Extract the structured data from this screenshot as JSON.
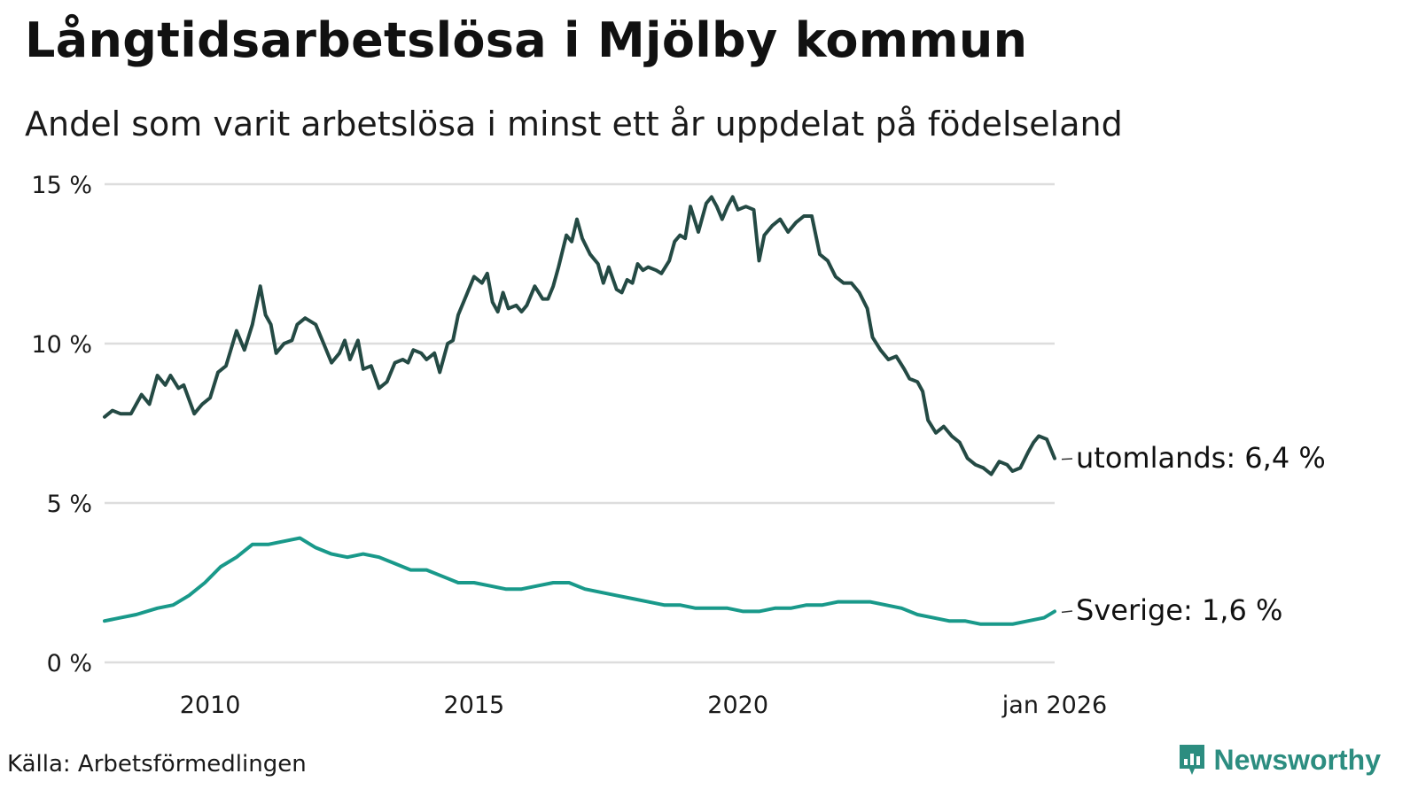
{
  "header": {
    "title": "Långtidsarbetslösa i Mjölby kommun",
    "subtitle": "Andel som varit arbetslösa i minst ett år uppdelat på födelseland"
  },
  "footer": {
    "source": "Källa: Arbetsförmedlingen",
    "brand": "Newsworthy"
  },
  "colors": {
    "utomlands": "#244a44",
    "sverige": "#19998a",
    "grid": "#dddddd",
    "brand": "#2c8d80"
  },
  "chart_data": {
    "type": "line",
    "title": "Långtidsarbetslösa i Mjölby kommun",
    "subtitle": "Andel som varit arbetslösa i minst ett år uppdelat på födelseland",
    "xlabel": "",
    "ylabel": "",
    "x_range": [
      2008.0,
      2026.0
    ],
    "ylim": [
      0,
      15
    ],
    "y_ticks": [
      0,
      5,
      10,
      15
    ],
    "y_tick_labels": [
      "0 %",
      "5 %",
      "10 %",
      "15 %"
    ],
    "x_ticks": [
      2010,
      2015,
      2020,
      2026
    ],
    "x_tick_labels": [
      "2010",
      "2015",
      "2020",
      "jan 2026"
    ],
    "grid": true,
    "series": [
      {
        "name": "utomlands",
        "end_label": "utomlands: 6,4 %",
        "points": [
          [
            2008.0,
            7.7
          ],
          [
            2008.15,
            7.9
          ],
          [
            2008.3,
            7.8
          ],
          [
            2008.5,
            7.8
          ],
          [
            2008.7,
            8.4
          ],
          [
            2008.85,
            8.1
          ],
          [
            2009.0,
            9.0
          ],
          [
            2009.15,
            8.7
          ],
          [
            2009.25,
            9.0
          ],
          [
            2009.4,
            8.6
          ],
          [
            2009.5,
            8.7
          ],
          [
            2009.7,
            7.8
          ],
          [
            2009.85,
            8.1
          ],
          [
            2010.0,
            8.3
          ],
          [
            2010.15,
            9.1
          ],
          [
            2010.3,
            9.3
          ],
          [
            2010.5,
            10.4
          ],
          [
            2010.65,
            9.8
          ],
          [
            2010.8,
            10.6
          ],
          [
            2010.95,
            11.8
          ],
          [
            2011.05,
            10.9
          ],
          [
            2011.15,
            10.6
          ],
          [
            2011.25,
            9.7
          ],
          [
            2011.4,
            10.0
          ],
          [
            2011.55,
            10.1
          ],
          [
            2011.65,
            10.6
          ],
          [
            2011.8,
            10.8
          ],
          [
            2012.0,
            10.6
          ],
          [
            2012.15,
            10.0
          ],
          [
            2012.3,
            9.4
          ],
          [
            2012.45,
            9.7
          ],
          [
            2012.55,
            10.1
          ],
          [
            2012.65,
            9.5
          ],
          [
            2012.8,
            10.1
          ],
          [
            2012.9,
            9.2
          ],
          [
            2013.05,
            9.3
          ],
          [
            2013.2,
            8.6
          ],
          [
            2013.35,
            8.8
          ],
          [
            2013.5,
            9.4
          ],
          [
            2013.65,
            9.5
          ],
          [
            2013.75,
            9.4
          ],
          [
            2013.85,
            9.8
          ],
          [
            2014.0,
            9.7
          ],
          [
            2014.1,
            9.5
          ],
          [
            2014.25,
            9.7
          ],
          [
            2014.35,
            9.1
          ],
          [
            2014.5,
            10.0
          ],
          [
            2014.6,
            10.1
          ],
          [
            2014.7,
            10.9
          ],
          [
            2014.85,
            11.5
          ],
          [
            2015.0,
            12.1
          ],
          [
            2015.15,
            11.9
          ],
          [
            2015.25,
            12.2
          ],
          [
            2015.35,
            11.3
          ],
          [
            2015.45,
            11.0
          ],
          [
            2015.55,
            11.6
          ],
          [
            2015.65,
            11.1
          ],
          [
            2015.8,
            11.2
          ],
          [
            2015.9,
            11.0
          ],
          [
            2016.0,
            11.2
          ],
          [
            2016.15,
            11.8
          ],
          [
            2016.3,
            11.4
          ],
          [
            2016.4,
            11.4
          ],
          [
            2016.5,
            11.8
          ],
          [
            2016.6,
            12.4
          ],
          [
            2016.75,
            13.4
          ],
          [
            2016.85,
            13.2
          ],
          [
            2016.95,
            13.9
          ],
          [
            2017.05,
            13.3
          ],
          [
            2017.2,
            12.8
          ],
          [
            2017.35,
            12.5
          ],
          [
            2017.45,
            11.9
          ],
          [
            2017.55,
            12.4
          ],
          [
            2017.7,
            11.7
          ],
          [
            2017.8,
            11.6
          ],
          [
            2017.9,
            12.0
          ],
          [
            2018.0,
            11.9
          ],
          [
            2018.1,
            12.5
          ],
          [
            2018.2,
            12.3
          ],
          [
            2018.3,
            12.4
          ],
          [
            2018.45,
            12.3
          ],
          [
            2018.55,
            12.2
          ],
          [
            2018.7,
            12.6
          ],
          [
            2018.8,
            13.2
          ],
          [
            2018.9,
            13.4
          ],
          [
            2019.0,
            13.3
          ],
          [
            2019.1,
            14.3
          ],
          [
            2019.25,
            13.5
          ],
          [
            2019.4,
            14.4
          ],
          [
            2019.5,
            14.6
          ],
          [
            2019.6,
            14.3
          ],
          [
            2019.7,
            13.9
          ],
          [
            2019.8,
            14.3
          ],
          [
            2019.9,
            14.6
          ],
          [
            2020.0,
            14.2
          ],
          [
            2020.15,
            14.3
          ],
          [
            2020.3,
            14.2
          ],
          [
            2020.4,
            12.6
          ],
          [
            2020.5,
            13.4
          ],
          [
            2020.65,
            13.7
          ],
          [
            2020.8,
            13.9
          ],
          [
            2020.95,
            13.5
          ],
          [
            2021.1,
            13.8
          ],
          [
            2021.25,
            14.0
          ],
          [
            2021.4,
            14.0
          ],
          [
            2021.55,
            12.8
          ],
          [
            2021.7,
            12.6
          ],
          [
            2021.85,
            12.1
          ],
          [
            2022.0,
            11.9
          ],
          [
            2022.15,
            11.9
          ],
          [
            2022.3,
            11.6
          ],
          [
            2022.45,
            11.1
          ],
          [
            2022.55,
            10.2
          ],
          [
            2022.7,
            9.8
          ],
          [
            2022.85,
            9.5
          ],
          [
            2023.0,
            9.6
          ],
          [
            2023.15,
            9.2
          ],
          [
            2023.25,
            8.9
          ],
          [
            2023.4,
            8.8
          ],
          [
            2023.5,
            8.5
          ],
          [
            2023.6,
            7.6
          ],
          [
            2023.75,
            7.2
          ],
          [
            2023.9,
            7.4
          ],
          [
            2024.05,
            7.1
          ],
          [
            2024.2,
            6.9
          ],
          [
            2024.35,
            6.4
          ],
          [
            2024.5,
            6.2
          ],
          [
            2024.65,
            6.1
          ],
          [
            2024.8,
            5.9
          ],
          [
            2024.95,
            6.3
          ],
          [
            2025.1,
            6.2
          ],
          [
            2025.2,
            6.0
          ],
          [
            2025.35,
            6.1
          ],
          [
            2025.5,
            6.6
          ],
          [
            2025.6,
            6.9
          ],
          [
            2025.7,
            7.1
          ],
          [
            2025.85,
            7.0
          ],
          [
            2026.0,
            6.4
          ]
        ]
      },
      {
        "name": "Sverige",
        "end_label": "Sverige: 1,6 %",
        "points": [
          [
            2008.0,
            1.3
          ],
          [
            2008.3,
            1.4
          ],
          [
            2008.6,
            1.5
          ],
          [
            2009.0,
            1.7
          ],
          [
            2009.3,
            1.8
          ],
          [
            2009.6,
            2.1
          ],
          [
            2009.9,
            2.5
          ],
          [
            2010.2,
            3.0
          ],
          [
            2010.5,
            3.3
          ],
          [
            2010.8,
            3.7
          ],
          [
            2011.1,
            3.7
          ],
          [
            2011.4,
            3.8
          ],
          [
            2011.7,
            3.9
          ],
          [
            2012.0,
            3.6
          ],
          [
            2012.3,
            3.4
          ],
          [
            2012.6,
            3.3
          ],
          [
            2012.9,
            3.4
          ],
          [
            2013.2,
            3.3
          ],
          [
            2013.5,
            3.1
          ],
          [
            2013.8,
            2.9
          ],
          [
            2014.1,
            2.9
          ],
          [
            2014.4,
            2.7
          ],
          [
            2014.7,
            2.5
          ],
          [
            2015.0,
            2.5
          ],
          [
            2015.3,
            2.4
          ],
          [
            2015.6,
            2.3
          ],
          [
            2015.9,
            2.3
          ],
          [
            2016.2,
            2.4
          ],
          [
            2016.5,
            2.5
          ],
          [
            2016.8,
            2.5
          ],
          [
            2017.1,
            2.3
          ],
          [
            2017.4,
            2.2
          ],
          [
            2017.7,
            2.1
          ],
          [
            2018.0,
            2.0
          ],
          [
            2018.3,
            1.9
          ],
          [
            2018.6,
            1.8
          ],
          [
            2018.9,
            1.8
          ],
          [
            2019.2,
            1.7
          ],
          [
            2019.5,
            1.7
          ],
          [
            2019.8,
            1.7
          ],
          [
            2020.1,
            1.6
          ],
          [
            2020.4,
            1.6
          ],
          [
            2020.7,
            1.7
          ],
          [
            2021.0,
            1.7
          ],
          [
            2021.3,
            1.8
          ],
          [
            2021.6,
            1.8
          ],
          [
            2021.9,
            1.9
          ],
          [
            2022.2,
            1.9
          ],
          [
            2022.5,
            1.9
          ],
          [
            2022.8,
            1.8
          ],
          [
            2023.1,
            1.7
          ],
          [
            2023.4,
            1.5
          ],
          [
            2023.7,
            1.4
          ],
          [
            2024.0,
            1.3
          ],
          [
            2024.3,
            1.3
          ],
          [
            2024.6,
            1.2
          ],
          [
            2024.9,
            1.2
          ],
          [
            2025.2,
            1.2
          ],
          [
            2025.5,
            1.3
          ],
          [
            2025.8,
            1.4
          ],
          [
            2026.0,
            1.6
          ]
        ]
      }
    ]
  }
}
